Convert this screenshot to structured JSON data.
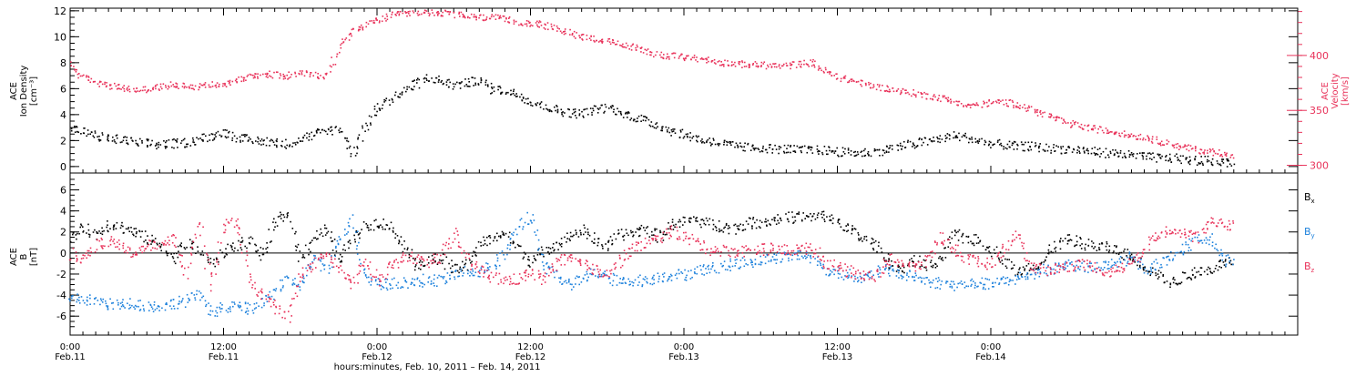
{
  "chart_data": [
    {
      "type": "scatter",
      "panel": "top",
      "xlim": [
        0,
        96
      ],
      "ylabel": "ACE Ion Density [cm⁻³]",
      "ylabel_lines": [
        "ACE",
        "Ion Density",
        "[cm⁻³]"
      ],
      "ylim": [
        -0.5,
        12.2
      ],
      "yticks": [
        0,
        2,
        4,
        6,
        8,
        10,
        12
      ],
      "y2label": "ACE Velocity [km/s]",
      "y2label_lines": [
        "ACE",
        "Velocity",
        "[km/s]"
      ],
      "y2lim": [
        293,
        443
      ],
      "y2ticks": [
        300,
        350,
        400
      ],
      "grid": false,
      "series": [
        {
          "name": "Ion Density",
          "axis": "left",
          "color": "#000000",
          "x": [
            0,
            1,
            2,
            3,
            4,
            5,
            6,
            7,
            8,
            9,
            10,
            11,
            12,
            13,
            14,
            15,
            16,
            17,
            18,
            19,
            20,
            21,
            22,
            23,
            24,
            25,
            26,
            27,
            28,
            29,
            30,
            31,
            32,
            33,
            34,
            35,
            36,
            37,
            38,
            39,
            40,
            41,
            42,
            43,
            44,
            45,
            46,
            47,
            48,
            49,
            50,
            51,
            52,
            53,
            54,
            55,
            56,
            57,
            58,
            59,
            60,
            61,
            62,
            63,
            64,
            65,
            66,
            67,
            68,
            69,
            70,
            71,
            72,
            73,
            74,
            75,
            76,
            77,
            78,
            79,
            80,
            81,
            82,
            83,
            84,
            85,
            86,
            87,
            88,
            89,
            90,
            91
          ],
          "y": [
            3.0,
            2.7,
            2.4,
            2.2,
            2.1,
            1.9,
            1.8,
            1.7,
            1.8,
            1.9,
            2.1,
            2.4,
            2.7,
            2.3,
            2.1,
            2.0,
            1.9,
            1.8,
            2.2,
            2.5,
            2.8,
            3.0,
            1.0,
            3.0,
            4.5,
            5.2,
            5.8,
            6.4,
            6.9,
            6.6,
            6.3,
            6.5,
            6.7,
            6.0,
            5.9,
            5.6,
            5.1,
            4.7,
            4.4,
            4.2,
            4.1,
            4.4,
            4.6,
            4.2,
            3.9,
            3.6,
            3.2,
            2.8,
            2.5,
            2.2,
            2.0,
            1.8,
            1.6,
            1.5,
            1.5,
            1.4,
            1.4,
            1.3,
            1.3,
            1.3,
            1.2,
            1.1,
            1.1,
            1.2,
            1.4,
            1.6,
            1.8,
            2.0,
            2.2,
            2.4,
            2.3,
            2.0,
            1.8,
            1.7,
            1.6,
            1.6,
            1.5,
            1.4,
            1.4,
            1.3,
            1.2,
            1.1,
            1.0,
            0.9,
            0.8,
            0.7,
            0.7,
            0.6,
            0.5,
            0.5,
            0.4,
            0.3
          ]
        },
        {
          "name": "Velocity",
          "axis": "right",
          "color": "#e8325a",
          "x": [
            0,
            1,
            2,
            3,
            4,
            5,
            6,
            7,
            8,
            9,
            10,
            11,
            12,
            13,
            14,
            15,
            16,
            17,
            18,
            19,
            20,
            21,
            22,
            23,
            24,
            25,
            26,
            27,
            28,
            29,
            30,
            31,
            32,
            33,
            34,
            35,
            36,
            37,
            38,
            39,
            40,
            41,
            42,
            43,
            44,
            45,
            46,
            47,
            48,
            49,
            50,
            51,
            52,
            53,
            54,
            55,
            56,
            57,
            58,
            59,
            60,
            61,
            62,
            63,
            64,
            65,
            66,
            67,
            68,
            69,
            70,
            71,
            72,
            73,
            74,
            75,
            76,
            77,
            78,
            79,
            80,
            81,
            82,
            83,
            84,
            85,
            86,
            87,
            88,
            89,
            90,
            91
          ],
          "y": [
            392,
            380,
            377,
            373,
            371,
            369,
            370,
            372,
            374,
            373,
            372,
            374,
            375,
            378,
            381,
            384,
            383,
            382,
            385,
            383,
            381,
            408,
            422,
            428,
            432,
            437,
            438,
            440,
            440,
            439,
            438,
            436,
            435,
            435,
            433,
            431,
            430,
            428,
            425,
            421,
            418,
            416,
            413,
            410,
            408,
            405,
            401,
            400,
            399,
            398,
            396,
            394,
            393,
            392,
            392,
            391,
            391,
            393,
            394,
            386,
            381,
            378,
            375,
            372,
            370,
            368,
            366,
            364,
            362,
            359,
            355,
            355,
            358,
            358,
            356,
            352,
            348,
            343,
            339,
            336,
            334,
            332,
            330,
            328,
            326,
            323,
            320,
            317,
            315,
            313,
            312,
            308
          ]
        }
      ]
    },
    {
      "type": "scatter",
      "panel": "bottom",
      "xlim": [
        0,
        96
      ],
      "ylabel": "ACE B [nT]",
      "ylabel_lines": [
        "ACE",
        "B",
        "[nT]"
      ],
      "ylim": [
        -7.8,
        7.6
      ],
      "yticks": [
        -6,
        -4,
        -2,
        0,
        2,
        4,
        6
      ],
      "zero_line": true,
      "grid": false,
      "legend": "right",
      "series": [
        {
          "name": "B",
          "subscript": "x",
          "color": "#000000",
          "x": [
            0,
            1,
            2,
            3,
            4,
            5,
            6,
            7,
            8,
            9,
            10,
            11,
            12,
            13,
            14,
            15,
            16,
            17,
            18,
            19,
            20,
            21,
            22,
            23,
            24,
            25,
            26,
            27,
            28,
            29,
            30,
            31,
            32,
            33,
            34,
            35,
            36,
            37,
            38,
            39,
            40,
            41,
            42,
            43,
            44,
            45,
            46,
            47,
            48,
            49,
            50,
            51,
            52,
            53,
            54,
            55,
            56,
            57,
            58,
            59,
            60,
            61,
            62,
            63,
            64,
            65,
            66,
            67,
            68,
            69,
            70,
            71,
            72,
            73,
            74,
            75,
            76,
            77,
            78,
            79,
            80,
            81,
            82,
            83,
            84,
            85,
            86,
            87,
            88,
            89,
            90,
            91
          ],
          "y": [
            1.5,
            2.5,
            1.8,
            2.9,
            2.5,
            2.0,
            1.4,
            0.8,
            -0.5,
            1.0,
            0.4,
            -1.0,
            0.2,
            0.8,
            1.2,
            -0.3,
            2.8,
            4.0,
            -0.5,
            1.5,
            2.4,
            -0.6,
            1.2,
            2.6,
            3.0,
            2.5,
            1.0,
            -1.0,
            -0.8,
            -0.4,
            -1.6,
            -1.2,
            1.0,
            1.4,
            2.0,
            0.5,
            -0.8,
            0.2,
            1.0,
            1.6,
            2.2,
            1.4,
            0.6,
            1.8,
            2.0,
            2.4,
            1.6,
            2.8,
            3.0,
            3.2,
            2.8,
            2.6,
            2.4,
            2.9,
            3.0,
            3.2,
            3.4,
            3.5,
            3.4,
            3.6,
            3.0,
            2.2,
            1.4,
            0.8,
            -0.8,
            -1.5,
            -0.6,
            -1.2,
            -0.9,
            1.8,
            1.5,
            1.2,
            0.4,
            -0.5,
            -1.8,
            -1.2,
            -0.8,
            0.8,
            1.3,
            1.0,
            0.7,
            0.6,
            0.2,
            -0.4,
            -1.2,
            -2.0,
            -2.8,
            -2.3,
            -1.8,
            -1.5,
            -1.0,
            -0.9
          ]
        },
        {
          "name": "B",
          "subscript": "y",
          "color": "#1e82dc",
          "x": [
            0,
            1,
            2,
            3,
            4,
            5,
            6,
            7,
            8,
            9,
            10,
            11,
            12,
            13,
            14,
            15,
            16,
            17,
            18,
            19,
            20,
            21,
            22,
            23,
            24,
            25,
            26,
            27,
            28,
            29,
            30,
            31,
            32,
            33,
            34,
            35,
            36,
            37,
            38,
            39,
            40,
            41,
            42,
            43,
            44,
            45,
            46,
            47,
            48,
            49,
            50,
            51,
            52,
            53,
            54,
            55,
            56,
            57,
            58,
            59,
            60,
            61,
            62,
            63,
            64,
            65,
            66,
            67,
            68,
            69,
            70,
            71,
            72,
            73,
            74,
            75,
            76,
            77,
            78,
            79,
            80,
            81,
            82,
            83,
            84,
            85,
            86,
            87,
            88,
            89,
            90,
            91
          ],
          "y": [
            -4.5,
            -4.3,
            -4.5,
            -4.8,
            -4.9,
            -4.7,
            -5.0,
            -5.0,
            -4.7,
            -4.5,
            -3.8,
            -5.5,
            -5.2,
            -5.0,
            -5.3,
            -4.8,
            -3.5,
            -2.5,
            -3.0,
            -0.5,
            -1.5,
            1.5,
            3.2,
            -2.0,
            -2.8,
            -3.0,
            -2.7,
            -2.8,
            -2.4,
            -2.6,
            -2.0,
            -1.7,
            -1.8,
            -1.0,
            0.0,
            2.5,
            3.5,
            -1.0,
            -2.0,
            -3.0,
            -2.5,
            -1.8,
            -2.2,
            -2.8,
            -2.5,
            -2.6,
            -2.2,
            -2.0,
            -2.0,
            -1.6,
            -1.4,
            -1.2,
            -1.0,
            -0.8,
            -0.6,
            -0.4,
            -0.3,
            -0.1,
            -0.3,
            -1.6,
            -1.8,
            -2.0,
            -2.4,
            -1.8,
            -1.5,
            -2.0,
            -2.2,
            -2.6,
            -2.8,
            -3.0,
            -2.9,
            -2.8,
            -3.0,
            -2.6,
            -2.4,
            -2.0,
            -1.6,
            -1.4,
            -1.0,
            -1.2,
            -1.4,
            -1.2,
            -0.8,
            -0.4,
            -1.5,
            -1.0,
            -0.5,
            0.5,
            1.2,
            1.8,
            -0.5,
            -1.0
          ]
        },
        {
          "name": "B",
          "subscript": "z",
          "color": "#e8325a",
          "x": [
            0,
            1,
            2,
            3,
            4,
            5,
            6,
            7,
            8,
            9,
            10,
            11,
            12,
            13,
            14,
            15,
            16,
            17,
            18,
            19,
            20,
            21,
            22,
            23,
            24,
            25,
            26,
            27,
            28,
            29,
            30,
            31,
            32,
            33,
            34,
            35,
            36,
            37,
            38,
            39,
            40,
            41,
            42,
            43,
            44,
            45,
            46,
            47,
            48,
            49,
            50,
            51,
            52,
            53,
            54,
            55,
            56,
            57,
            58,
            59,
            60,
            61,
            62,
            63,
            64,
            65,
            66,
            67,
            68,
            69,
            70,
            71,
            72,
            73,
            74,
            75,
            76,
            77,
            78,
            79,
            80,
            81,
            82,
            83,
            84,
            85,
            86,
            87,
            88,
            89,
            90,
            91
          ],
          "y": [
            0.0,
            -0.5,
            0.8,
            1.2,
            0.6,
            -0.2,
            1.0,
            0.5,
            2.0,
            -2.0,
            3.0,
            -3.0,
            2.5,
            3.2,
            -2.5,
            -4.0,
            -5.0,
            -6.0,
            -2.0,
            -1.0,
            0.0,
            -1.5,
            -3.0,
            -0.8,
            -2.5,
            -1.2,
            -0.5,
            -0.4,
            -1.0,
            -0.2,
            2.0,
            -0.8,
            -1.5,
            -2.2,
            -2.6,
            -2.4,
            -1.8,
            -2.5,
            -0.8,
            -0.5,
            -1.0,
            -1.5,
            -1.8,
            -0.6,
            0.5,
            1.0,
            1.4,
            2.2,
            1.6,
            1.0,
            0.4,
            0.3,
            0.2,
            0.3,
            0.4,
            0.5,
            0.3,
            0.4,
            0.6,
            -0.8,
            -1.2,
            -1.8,
            -2.0,
            -2.2,
            -0.5,
            -0.8,
            -1.4,
            -0.6,
            1.6,
            0.5,
            -0.5,
            -0.8,
            -1.0,
            0.5,
            2.0,
            -1.2,
            -1.6,
            -1.4,
            -1.2,
            -1.0,
            -1.2,
            -1.8,
            -1.5,
            -0.8,
            0.5,
            1.8,
            2.4,
            2.0,
            1.5,
            2.8,
            3.0,
            2.6
          ]
        }
      ],
      "legend_order": [
        "x",
        "y",
        "z"
      ]
    }
  ],
  "xaxis": {
    "ticks": [
      {
        "t": 0,
        "time": "0:00",
        "date": "Feb.11"
      },
      {
        "t": 12,
        "time": "12:00",
        "date": "Feb.11"
      },
      {
        "t": 24,
        "time": "0:00",
        "date": "Feb.12"
      },
      {
        "t": 36,
        "time": "12:00",
        "date": "Feb.12"
      },
      {
        "t": 48,
        "time": "0:00",
        "date": "Feb.13"
      },
      {
        "t": 60,
        "time": "12:00",
        "date": "Feb.13"
      },
      {
        "t": 72,
        "time": "0:00",
        "date": "Feb.14"
      }
    ],
    "title": "hours:minutes, Feb. 10, 2011 – Feb. 14, 2011"
  }
}
